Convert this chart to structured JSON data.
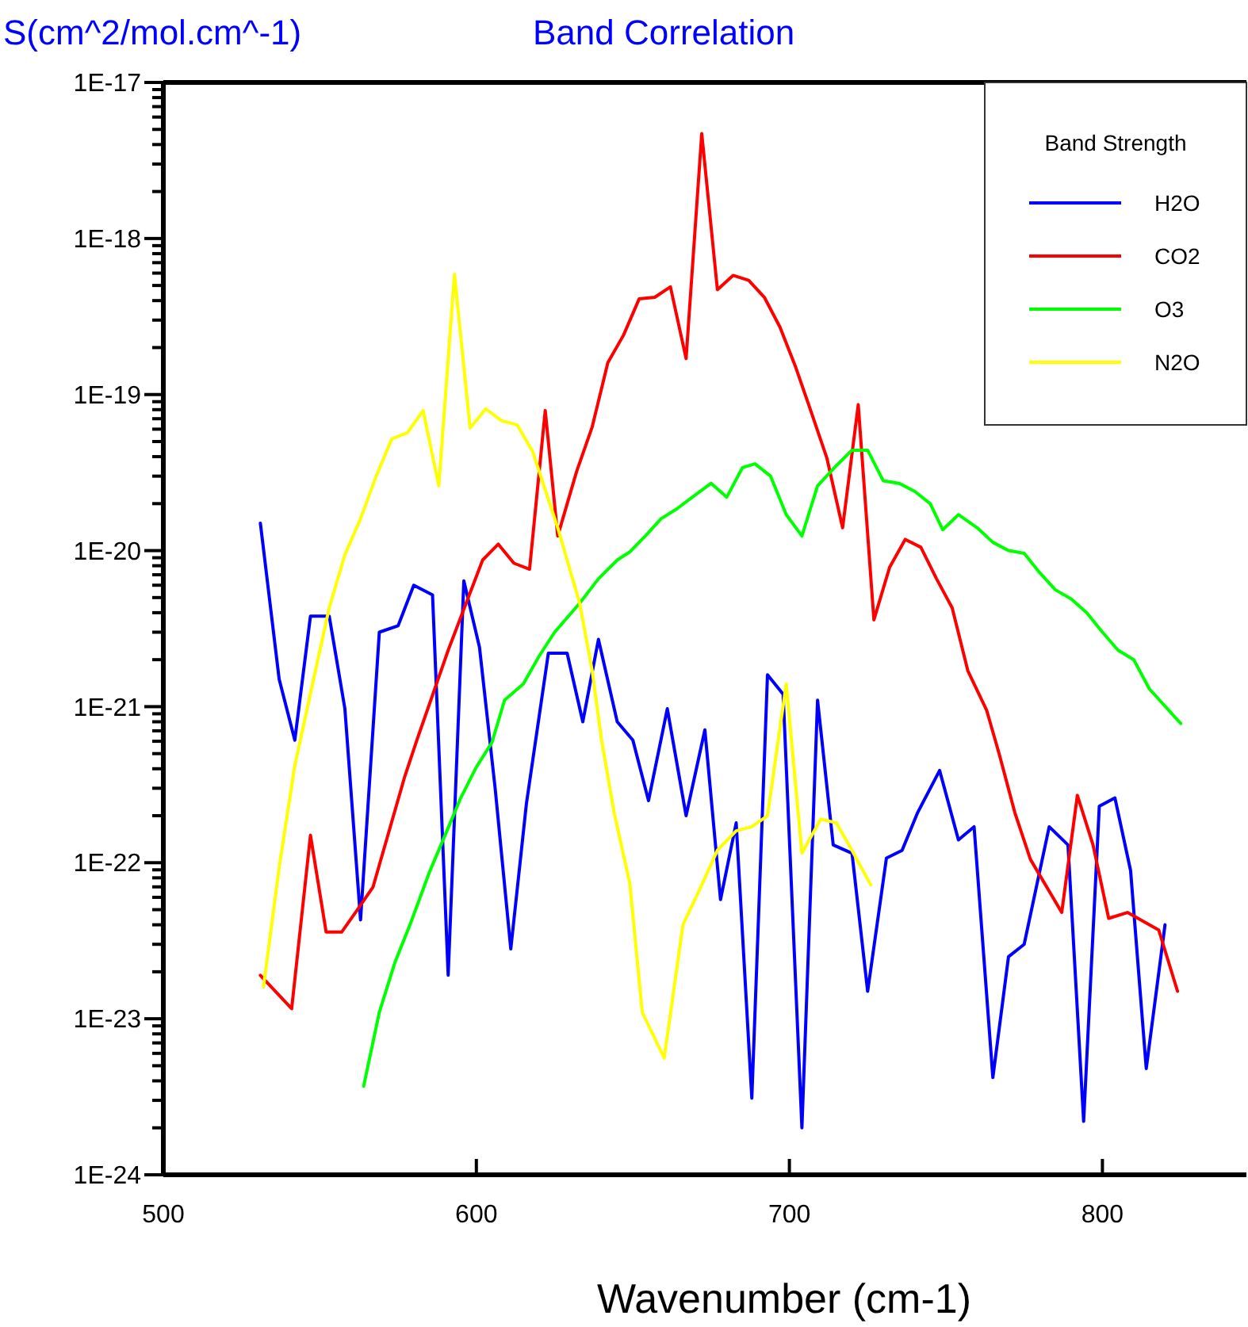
{
  "chart_data": {
    "type": "line",
    "title": "Band Correlation",
    "ylabel": "S(cm^2/mol.cm^-1)",
    "xlabel": "Wavenumber (cm-1)",
    "legend_title": "Band Strength",
    "legend": "top right",
    "log": true,
    "grid": false,
    "xlim": [
      500,
      846
    ],
    "xticks": [
      500,
      600,
      700,
      800
    ],
    "ylim": [
      1e-24,
      1e-17
    ],
    "yticks": [
      {
        "value": 1e-24,
        "label": "1E-24"
      },
      {
        "value": 2e-24,
        "label": null
      },
      {
        "value": 3e-24,
        "label": null
      },
      {
        "value": 4e-24,
        "label": null
      },
      {
        "value": 5e-24,
        "label": null
      },
      {
        "value": 6e-24,
        "label": null
      },
      {
        "value": 7e-24,
        "label": null
      },
      {
        "value": 8e-24,
        "label": null
      },
      {
        "value": 9e-24,
        "label": null
      },
      {
        "value": 1e-23,
        "label": "1E-23"
      },
      {
        "value": 2e-23,
        "label": null
      },
      {
        "value": 3e-23,
        "label": null
      },
      {
        "value": 4e-23,
        "label": null
      },
      {
        "value": 5e-23,
        "label": null
      },
      {
        "value": 6e-23,
        "label": null
      },
      {
        "value": 7e-23,
        "label": null
      },
      {
        "value": 8e-23,
        "label": null
      },
      {
        "value": 9e-23,
        "label": null
      },
      {
        "value": 1e-22,
        "label": "1E-22"
      },
      {
        "value": 2e-22,
        "label": null
      },
      {
        "value": 3e-22,
        "label": null
      },
      {
        "value": 4e-22,
        "label": null
      },
      {
        "value": 5e-22,
        "label": null
      },
      {
        "value": 6e-22,
        "label": null
      },
      {
        "value": 7e-22,
        "label": null
      },
      {
        "value": 8e-22,
        "label": null
      },
      {
        "value": 9e-22,
        "label": null
      },
      {
        "value": 1e-21,
        "label": "1E-21"
      },
      {
        "value": 2e-21,
        "label": null
      },
      {
        "value": 3e-21,
        "label": null
      },
      {
        "value": 4e-21,
        "label": null
      },
      {
        "value": 5e-21,
        "label": null
      },
      {
        "value": 6e-21,
        "label": null
      },
      {
        "value": 7e-21,
        "label": null
      },
      {
        "value": 8e-21,
        "label": null
      },
      {
        "value": 9e-21,
        "label": null
      },
      {
        "value": 1e-20,
        "label": "1E-20"
      },
      {
        "value": 2e-20,
        "label": null
      },
      {
        "value": 3e-20,
        "label": null
      },
      {
        "value": 4e-20,
        "label": null
      },
      {
        "value": 5e-20,
        "label": null
      },
      {
        "value": 6e-20,
        "label": null
      },
      {
        "value": 7e-20,
        "label": null
      },
      {
        "value": 8e-20,
        "label": null
      },
      {
        "value": 9e-20,
        "label": null
      },
      {
        "value": 1e-19,
        "label": "1E-19"
      },
      {
        "value": 2e-19,
        "label": null
      },
      {
        "value": 3e-19,
        "label": null
      },
      {
        "value": 4e-19,
        "label": null
      },
      {
        "value": 5e-19,
        "label": null
      },
      {
        "value": 6e-19,
        "label": null
      },
      {
        "value": 7e-19,
        "label": null
      },
      {
        "value": 8e-19,
        "label": null
      },
      {
        "value": 9e-19,
        "label": null
      },
      {
        "value": 1e-18,
        "label": "1E-18"
      },
      {
        "value": 2e-18,
        "label": null
      },
      {
        "value": 3e-18,
        "label": null
      },
      {
        "value": 4e-18,
        "label": null
      },
      {
        "value": 5e-18,
        "label": null
      },
      {
        "value": 6e-18,
        "label": null
      },
      {
        "value": 7e-18,
        "label": null
      },
      {
        "value": 8e-18,
        "label": null
      },
      {
        "value": 9e-18,
        "label": null
      },
      {
        "value": 1e-17,
        "label": "1E-17"
      }
    ],
    "series": [
      {
        "name": "H2O",
        "color": "#0000ff",
        "x": [
          531,
          537,
          542,
          547,
          553,
          558,
          563,
          569,
          575,
          580,
          586,
          591,
          596,
          601,
          606,
          611,
          616,
          623,
          629,
          634,
          639,
          645,
          650,
          655,
          661,
          667,
          673,
          678,
          683,
          688,
          693,
          698,
          704,
          709,
          714,
          720,
          725,
          731,
          736,
          741,
          748,
          754,
          759,
          765,
          770,
          775,
          783,
          789,
          794,
          799,
          804,
          809,
          814,
          820
        ],
        "values": [
          1.5e-20,
          1.5e-21,
          6.1e-22,
          3.8e-21,
          3.8e-21,
          9.7e-22,
          4.3e-23,
          3e-21,
          3.3e-21,
          6e-21,
          5.2e-21,
          1.9e-23,
          6.4e-21,
          2.4e-21,
          3e-22,
          2.8e-23,
          2.4e-22,
          2.2e-21,
          2.2e-21,
          8e-22,
          2.7e-21,
          8e-22,
          6.1e-22,
          2.5e-22,
          9.7e-22,
          2e-22,
          7.1e-22,
          5.8e-23,
          1.8e-22,
          3.1e-24,
          1.6e-21,
          1.2e-21,
          2e-24,
          1.1e-21,
          1.3e-22,
          1.15e-22,
          1.5e-23,
          1.07e-22,
          1.2e-22,
          2.1e-22,
          3.9e-22,
          1.4e-22,
          1.7e-22,
          4.2e-24,
          2.5e-23,
          3e-23,
          1.7e-22,
          1.3e-22,
          2.2e-24,
          2.3e-22,
          2.6e-22,
          8.9e-23,
          4.8e-24,
          4e-23
        ]
      },
      {
        "name": "CO2",
        "color": "#ff0000",
        "x": [
          531,
          541,
          547,
          552,
          557,
          562,
          567,
          577,
          581,
          591,
          602,
          607,
          612,
          617,
          622,
          626,
          632,
          637,
          642,
          647,
          652,
          657,
          662,
          667,
          672,
          677,
          682,
          687,
          692,
          697,
          702,
          707,
          712,
          717,
          722,
          727,
          732,
          737,
          742,
          747,
          752,
          757,
          763,
          767,
          772,
          777,
          787,
          792,
          797,
          802,
          808,
          818,
          824
        ],
        "values": [
          1.9e-23,
          1.16e-23,
          1.5e-22,
          3.6e-23,
          3.6e-23,
          5e-23,
          7e-23,
          3.5e-22,
          6.1e-22,
          2.3e-21,
          8.7e-21,
          1.1e-20,
          8.3e-21,
          7.6e-21,
          7.9e-20,
          1.24e-20,
          3.2e-20,
          6.2e-20,
          1.6e-19,
          2.4e-19,
          4.1e-19,
          4.2e-19,
          4.9e-19,
          1.7e-19,
          4.7e-18,
          4.7e-19,
          5.8e-19,
          5.4e-19,
          4.2e-19,
          2.7e-19,
          1.5e-19,
          7.7e-20,
          3.9e-20,
          1.4e-20,
          8.6e-20,
          3.6e-21,
          7.8e-21,
          1.18e-20,
          1.05e-20,
          6.6e-21,
          4.3e-21,
          1.7e-21,
          9.5e-22,
          5e-22,
          2.1e-22,
          1.05e-22,
          4.8e-23,
          2.7e-22,
          1.3e-22,
          4.4e-23,
          4.8e-23,
          3.7e-23,
          1.5e-23
        ]
      },
      {
        "name": "O3",
        "color": "#00ff00",
        "x": [
          564,
          569,
          574,
          579,
          585,
          590,
          595,
          600,
          605,
          609,
          615,
          620,
          625,
          633,
          639,
          645,
          649,
          654,
          659,
          664,
          669,
          675,
          680,
          685,
          689,
          694,
          699,
          704,
          709,
          715,
          720,
          725,
          730,
          735,
          740,
          745,
          749,
          754,
          760,
          765,
          770,
          775,
          780,
          785,
          790,
          795,
          800,
          805,
          810,
          815,
          825
        ],
        "values": [
          3.7e-24,
          1.1e-23,
          2.3e-23,
          4.1e-23,
          8.7e-23,
          1.5e-22,
          2.6e-22,
          4.1e-22,
          5.9e-22,
          1.1e-21,
          1.4e-21,
          2.1e-21,
          3e-21,
          4.6e-21,
          6.6e-21,
          8.7e-21,
          9.8e-21,
          1.24e-20,
          1.6e-20,
          1.85e-20,
          2.2e-20,
          2.7e-20,
          2.2e-20,
          3.4e-20,
          3.6e-20,
          3e-20,
          1.7e-20,
          1.24e-20,
          2.6e-20,
          3.5e-20,
          4.4e-20,
          4.4e-20,
          2.8e-20,
          2.7e-20,
          2.4e-20,
          2e-20,
          1.36e-20,
          1.7e-20,
          1.4e-20,
          1.13e-20,
          1e-20,
          9.6e-21,
          7.2e-21,
          5.6e-21,
          4.9e-21,
          4e-21,
          3e-21,
          2.3e-21,
          2e-21,
          1.3e-21,
          7.8e-22
        ]
      },
      {
        "name": "N2O",
        "color": "#ffff00",
        "x": [
          532,
          537,
          542,
          548,
          553,
          558,
          563,
          568,
          573,
          578,
          583,
          588,
          593,
          598,
          603,
          608,
          613,
          618,
          626,
          633,
          637,
          640,
          644,
          649,
          653,
          660,
          666,
          672,
          677,
          683,
          688,
          693,
          699,
          704,
          710,
          715,
          720,
          726
        ],
        "values": [
          1.6e-23,
          9.3e-23,
          4.2e-22,
          1.5e-21,
          4.3e-21,
          9.4e-21,
          1.6e-20,
          3e-20,
          5.2e-20,
          5.7e-20,
          7.9e-20,
          2.6e-20,
          5.9e-19,
          6.1e-20,
          8.1e-20,
          6.8e-20,
          6.4e-20,
          4.3e-20,
          1.4e-20,
          4.6e-21,
          1.7e-21,
          6.1e-22,
          2.1e-22,
          7.4e-23,
          1.1e-23,
          5.6e-24,
          4e-23,
          7.2e-23,
          1.2e-22,
          1.6e-22,
          1.7e-22,
          2e-22,
          1.4e-21,
          1.15e-22,
          1.9e-22,
          1.8e-22,
          1.2e-22,
          7.2e-23
        ]
      }
    ]
  }
}
